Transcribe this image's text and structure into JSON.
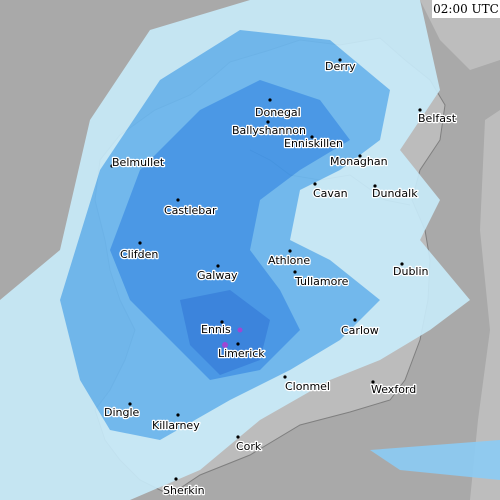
{
  "timestamp": "02:00 UTC",
  "places": [
    {
      "name": "Derry"
    },
    {
      "name": "Belfast"
    },
    {
      "name": "Donegal"
    },
    {
      "name": "Ballyshannon"
    },
    {
      "name": "Enniskillen"
    },
    {
      "name": "Monaghan"
    },
    {
      "name": "Belmullet"
    },
    {
      "name": "Cavan"
    },
    {
      "name": "Dundalk"
    },
    {
      "name": "Castlebar"
    },
    {
      "name": "Clifden"
    },
    {
      "name": "Athlone"
    },
    {
      "name": "Galway"
    },
    {
      "name": "Dublin"
    },
    {
      "name": "Tullamore"
    },
    {
      "name": "Ennis"
    },
    {
      "name": "Carlow"
    },
    {
      "name": "Limerick"
    },
    {
      "name": "Clonmel"
    },
    {
      "name": "Wexford"
    },
    {
      "name": "Dingle"
    },
    {
      "name": "Killarney"
    },
    {
      "name": "Cork"
    },
    {
      "name": "Sherkin"
    }
  ]
}
